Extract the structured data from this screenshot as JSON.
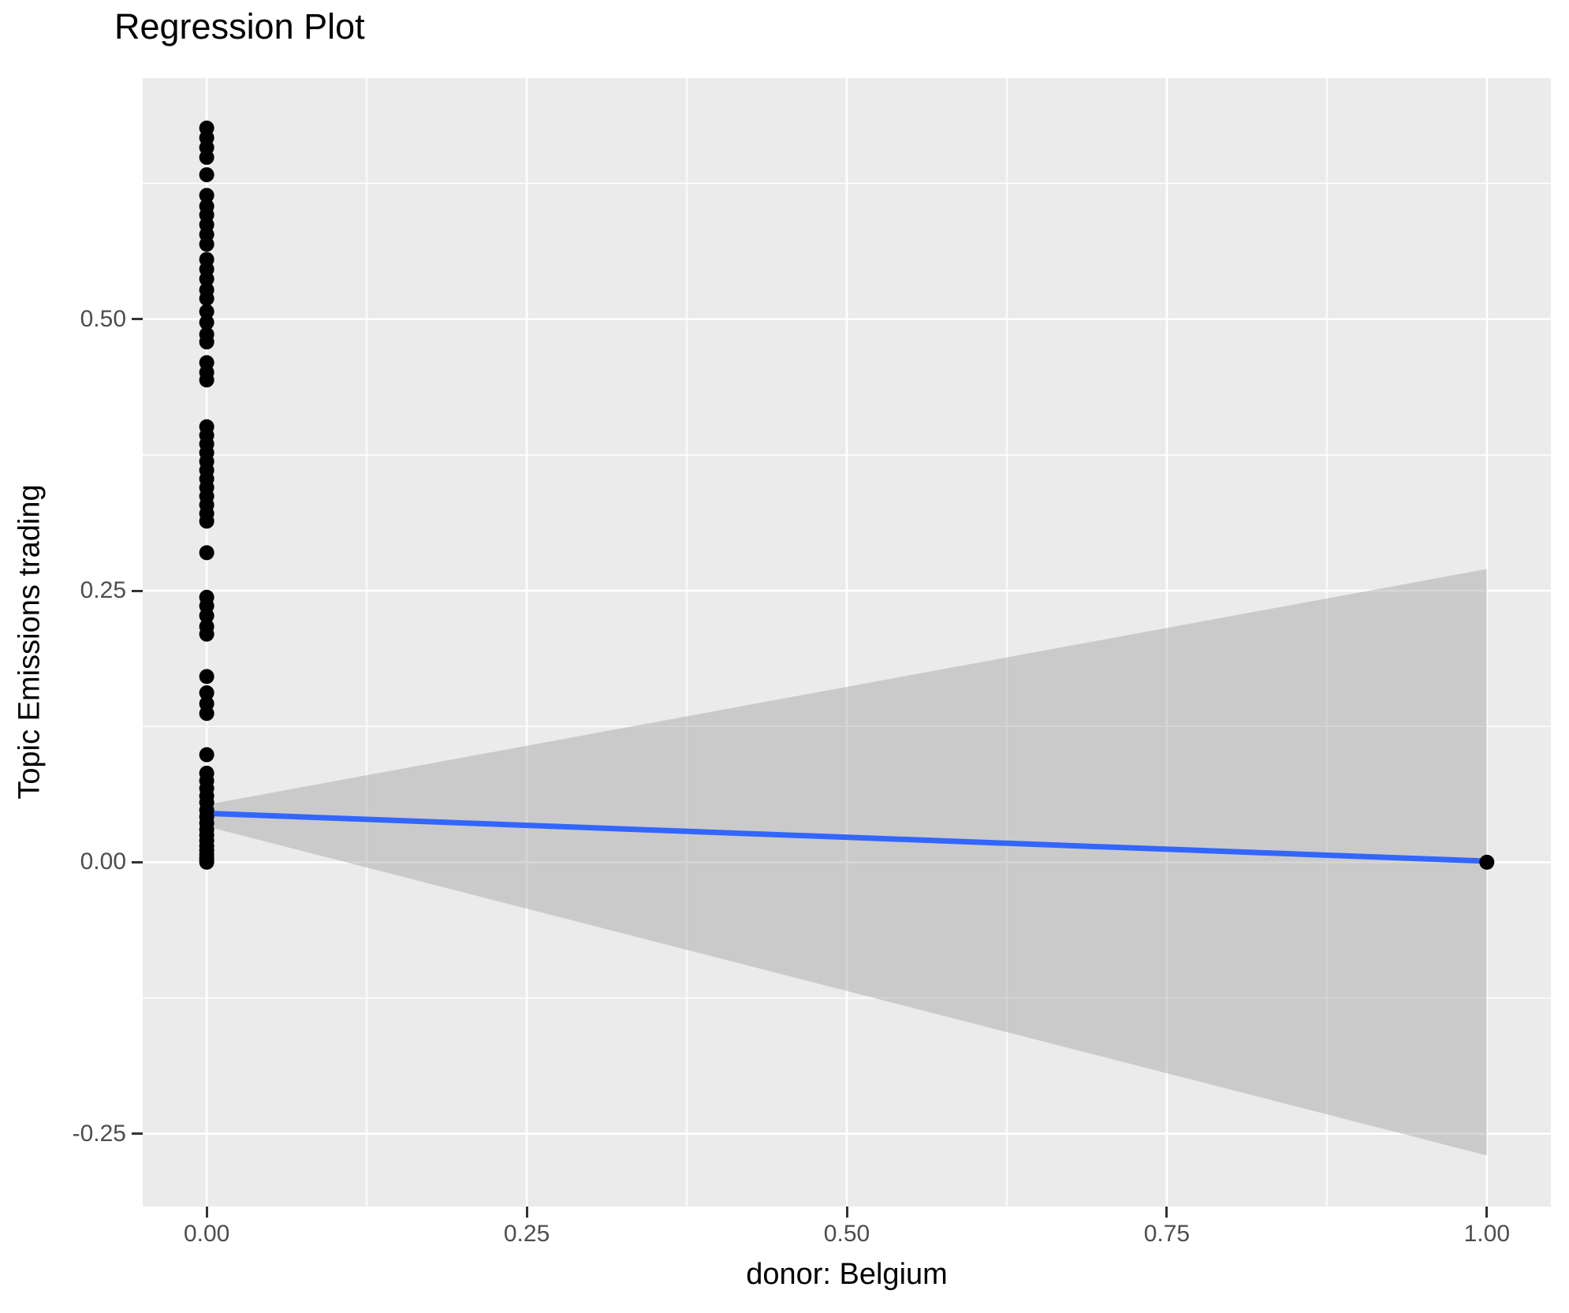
{
  "title": "Regression Plot",
  "colors": {
    "panel_bg": "#EBEBEB",
    "grid": "#FFFFFF",
    "point": "#000000",
    "regression_line": "#3366FF",
    "confidence_band": "rgba(153,153,153,0.4)",
    "tick_label": "#4D4D4D",
    "tick_mark": "#333333",
    "text": "#000000"
  },
  "chart_data": {
    "type": "scatter",
    "title": "Regression Plot",
    "xlabel": "donor: Belgium",
    "ylabel": "Topic Emissions trading",
    "xlim": [
      -0.05,
      1.05
    ],
    "ylim": [
      -0.317,
      0.722
    ],
    "x_ticks": [
      0,
      0.25,
      0.5,
      0.75,
      1.0
    ],
    "x_tick_labels": [
      "0.00",
      "0.25",
      "0.50",
      "0.75",
      "1.00"
    ],
    "y_ticks": [
      -0.25,
      0,
      0.25,
      0.5
    ],
    "y_tick_labels": [
      "-0.25",
      "0.00",
      "0.25",
      "0.50"
    ],
    "x_minor_gridlines": [
      0.125,
      0.375,
      0.625,
      0.875
    ],
    "y_minor_gridlines": [
      -0.125,
      0.125,
      0.375,
      0.625
    ],
    "grid": true,
    "legend": "none",
    "series": [
      {
        "name": "observations",
        "type": "points",
        "color": "#000000",
        "points": [
          [
            0,
            0.676
          ],
          [
            0,
            0.667
          ],
          [
            0,
            0.658
          ],
          [
            0,
            0.649
          ],
          [
            0,
            0.633
          ],
          [
            0,
            0.614
          ],
          [
            0,
            0.604
          ],
          [
            0,
            0.596
          ],
          [
            0,
            0.587
          ],
          [
            0,
            0.578
          ],
          [
            0,
            0.569
          ],
          [
            0,
            0.555
          ],
          [
            0,
            0.546
          ],
          [
            0,
            0.537
          ],
          [
            0,
            0.527
          ],
          [
            0,
            0.519
          ],
          [
            0,
            0.507
          ],
          [
            0,
            0.497
          ],
          [
            0,
            0.486
          ],
          [
            0,
            0.479
          ],
          [
            0,
            0.46
          ],
          [
            0,
            0.451
          ],
          [
            0,
            0.444
          ],
          [
            0,
            0.401
          ],
          [
            0,
            0.393
          ],
          [
            0,
            0.385
          ],
          [
            0,
            0.377
          ],
          [
            0,
            0.369
          ],
          [
            0,
            0.361
          ],
          [
            0,
            0.353
          ],
          [
            0,
            0.345
          ],
          [
            0,
            0.337
          ],
          [
            0,
            0.329
          ],
          [
            0,
            0.321
          ],
          [
            0,
            0.314
          ],
          [
            0,
            0.285
          ],
          [
            0,
            0.244
          ],
          [
            0,
            0.236
          ],
          [
            0,
            0.227
          ],
          [
            0,
            0.217
          ],
          [
            0,
            0.21
          ],
          [
            0,
            0.171
          ],
          [
            0,
            0.156
          ],
          [
            0,
            0.146
          ],
          [
            0,
            0.137
          ],
          [
            0,
            0.099
          ],
          [
            0,
            0.082
          ],
          [
            0,
            0.075
          ],
          [
            0,
            0.068
          ],
          [
            0,
            0.061
          ],
          [
            0,
            0.055
          ],
          [
            0,
            0.048
          ],
          [
            0,
            0.042
          ],
          [
            0,
            0.036
          ],
          [
            0,
            0.03
          ],
          [
            0,
            0.025
          ],
          [
            0,
            0.02
          ],
          [
            0,
            0.015
          ],
          [
            0,
            0.011
          ],
          [
            0,
            0.007
          ],
          [
            0,
            0.004
          ],
          [
            0,
            0.002
          ],
          [
            0,
            0.0
          ],
          [
            1,
            0.0
          ]
        ]
      },
      {
        "name": "regression-line",
        "type": "line",
        "color": "#3366FF",
        "points": [
          [
            0,
            0.045
          ],
          [
            1,
            0.001
          ]
        ]
      },
      {
        "name": "confidence-band",
        "type": "ribbon",
        "color": "rgba(153,153,153,0.4)",
        "upper": [
          [
            0,
            0.053
          ],
          [
            1,
            0.27
          ]
        ],
        "lower": [
          [
            0,
            0.033
          ],
          [
            1,
            -0.27
          ]
        ]
      }
    ]
  }
}
